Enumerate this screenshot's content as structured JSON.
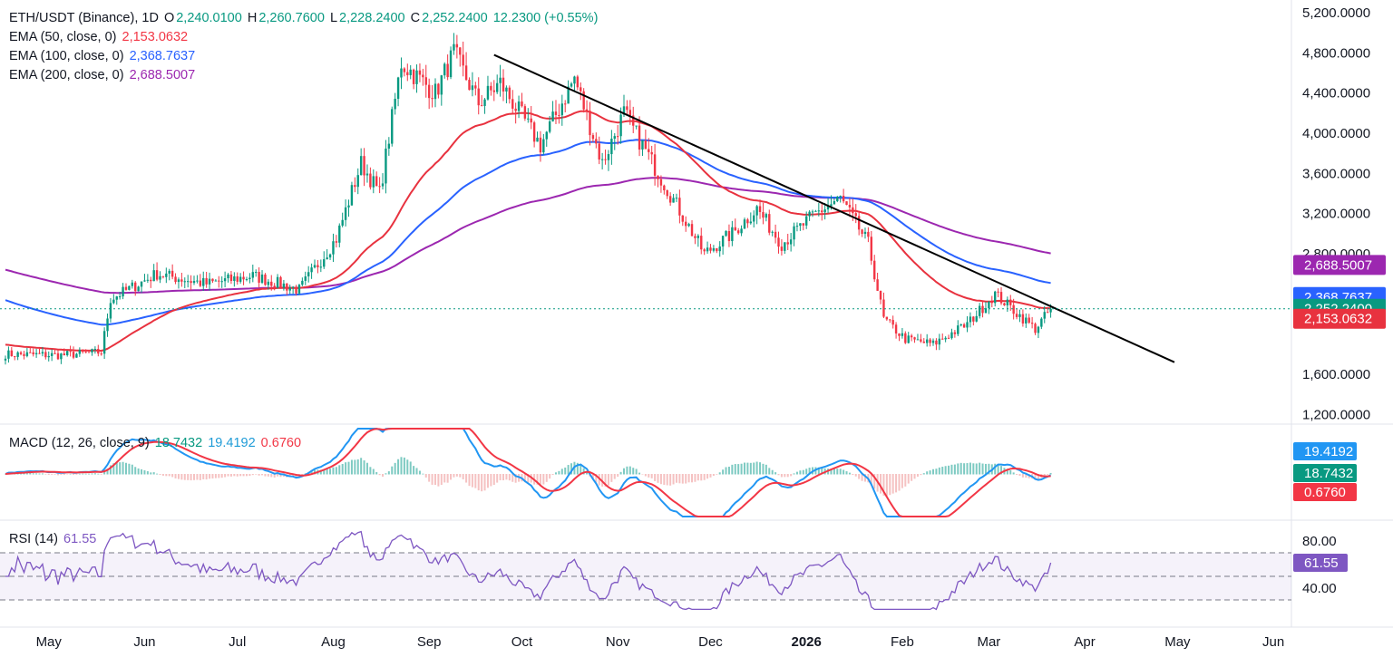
{
  "header": {
    "symbol": "ETH/USDT (Binance), 1D",
    "o_label": "O",
    "o_value": "2,240.0100",
    "h_label": "H",
    "h_value": "2,260.7600",
    "l_label": "L",
    "l_value": "2,228.2400",
    "c_label": "C",
    "c_value": "2,252.2400",
    "change": "12.2300 (+0.55%)"
  },
  "indicators": {
    "ema50_label": "EMA (50, close, 0)",
    "ema50_value": "2,153.0632",
    "ema100_label": "EMA (100, close, 0)",
    "ema100_value": "2,368.7637",
    "ema200_label": "EMA (200, close, 0)",
    "ema200_value": "2,688.5007",
    "macd_label": "MACD (12, 26, close, 9)",
    "macd_hist": "18.7432",
    "macd_line": "19.4192",
    "macd_signal": "0.6760",
    "rsi_label": "RSI (14)",
    "rsi_value": "61.55"
  },
  "colors": {
    "up": "#089981",
    "down": "#f23645",
    "ema50": "#e8323f",
    "ema100": "#2962ff",
    "ema200": "#9c27b0",
    "macd": "#2196f3",
    "signal": "#f23645",
    "rsi": "#7e57c2",
    "trendline": "#000000"
  },
  "chart_data": [
    {
      "type": "candlestick",
      "title": "ETH/USDT (Binance), 1D",
      "x_ticks": [
        "May",
        "Jun",
        "Jul",
        "Aug",
        "Sep",
        "Oct",
        "Nov",
        "Dec",
        "2026",
        "Feb",
        "Mar",
        "Apr",
        "May",
        "Jun"
      ],
      "y_ticks": [
        "5,200.0000",
        "4,800.0000",
        "4,400.0000",
        "4,000.0000",
        "3,600.0000",
        "3,200.0000",
        "2,800.0000",
        "1,600.0000",
        "1,200.0000"
      ],
      "ylim": [
        1100,
        5250
      ],
      "price_keypoints": {
        "day": [
          0,
          18,
          31,
          34,
          49,
          65,
          80,
          95,
          107,
          115,
          121,
          128,
          139,
          145,
          153,
          160,
          173,
          184,
          193,
          200,
          213,
          226,
          235,
          243,
          251,
          262,
          270,
          279,
          284,
          291,
          300,
          311,
          320,
          333,
          338
        ],
        "close": [
          1800,
          1790,
          1820,
          2350,
          2600,
          2500,
          2580,
          2440,
          2950,
          3700,
          3400,
          4700,
          4400,
          4800,
          4300,
          4500,
          3880,
          4550,
          3700,
          4200,
          3500,
          2800,
          3000,
          3250,
          2900,
          3200,
          3350,
          2900,
          2150,
          1950,
          1900,
          2100,
          2400,
          2050,
          2252
        ]
      },
      "ema_current": {
        "EMA 50": 2153.0632,
        "EMA 100": 2368.7637,
        "EMA 200": 2688.5007
      },
      "trendline": {
        "from": {
          "day": 158,
          "price": 4780
        },
        "to": {
          "day": 378,
          "price": 1720
        }
      },
      "last_price": 2252.24,
      "price_labels": [
        "2,688.5007",
        "2,368.7637",
        "2,252.2400",
        "2,153.0632"
      ]
    },
    {
      "type": "histogram+line",
      "title": "MACD (12, 26, close, 9)",
      "series": [
        {
          "name": "MACD",
          "value": 19.4192
        },
        {
          "name": "Signal",
          "value": 0.676
        },
        {
          "name": "Histogram",
          "value": 18.7432
        }
      ],
      "price_labels": [
        "19.4192",
        "18.7432",
        "0.6760"
      ]
    },
    {
      "type": "line",
      "title": "RSI (14)",
      "y_ticks": [
        "80.00",
        "40.00"
      ],
      "bands": [
        70,
        50,
        30
      ],
      "current": 61.55,
      "price_labels": [
        "61.55"
      ]
    }
  ]
}
